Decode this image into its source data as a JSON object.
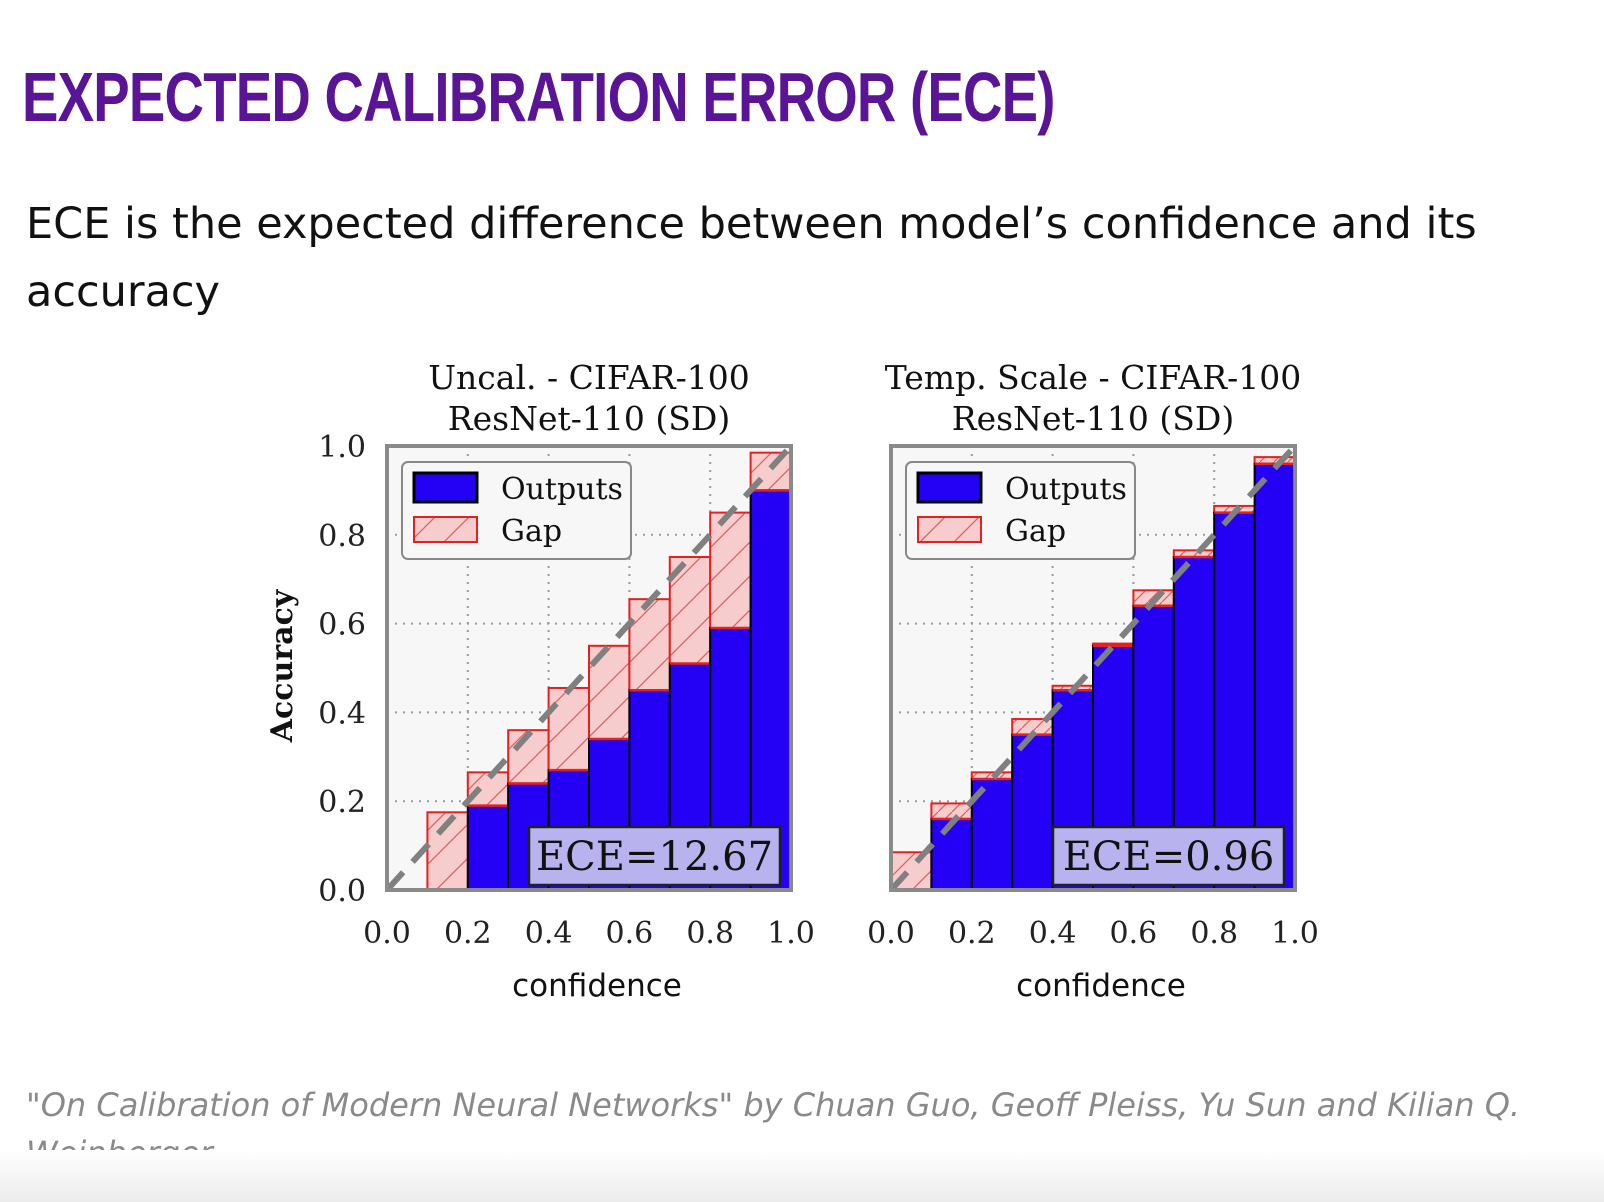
{
  "slide": {
    "title": "EXPECTED CALIBRATION ERROR (ECE)",
    "body": "ECE is the expected difference between model’s confidence and its accuracy",
    "citation": "\"On Calibration of Modern Neural Networks\" by Chuan Guo, Geoff Pleiss, Yu Sun and Kilian Q. Weinberger"
  },
  "colors": {
    "title": "#5a1596",
    "outputs": "#2400f5",
    "gap_fill": "#f6cccc",
    "gap_edge": "#e22222",
    "diagonal": "#808080",
    "ece_box": "#b8b2ee"
  },
  "chart_data": [
    {
      "type": "bar",
      "title_lines": [
        "Uncal. - CIFAR-100",
        "ResNet-110 (SD)"
      ],
      "xlabel": "confidence",
      "ylabel": "Accuracy",
      "xlim": [
        0,
        1
      ],
      "ylim": [
        0,
        1
      ],
      "x_ticks": [
        "0.0",
        "0.2",
        "0.4",
        "0.6",
        "0.8",
        "1.0"
      ],
      "y_ticks": [
        "0.0",
        "0.2",
        "0.4",
        "0.6",
        "0.8",
        "1.0"
      ],
      "grid": true,
      "legend": {
        "position": "top-left",
        "entries": [
          "Outputs",
          "Gap"
        ]
      },
      "annotation": "ECE=12.67",
      "bin_edges": [
        0.0,
        0.1,
        0.2,
        0.3,
        0.4,
        0.5,
        0.6,
        0.7,
        0.8,
        0.9,
        1.0
      ],
      "series": [
        {
          "name": "Outputs",
          "values": [
            0.0,
            0.0,
            0.19,
            0.24,
            0.27,
            0.34,
            0.45,
            0.51,
            0.59,
            0.9
          ]
        },
        {
          "name": "Gap",
          "values": [
            0.0,
            0.175,
            0.265,
            0.36,
            0.455,
            0.55,
            0.655,
            0.75,
            0.85,
            0.985
          ]
        }
      ]
    },
    {
      "type": "bar",
      "title_lines": [
        "Temp. Scale - CIFAR-100",
        "ResNet-110 (SD)"
      ],
      "xlabel": "confidence",
      "ylabel": "",
      "xlim": [
        0,
        1
      ],
      "ylim": [
        0,
        1
      ],
      "x_ticks": [
        "0.0",
        "0.2",
        "0.4",
        "0.6",
        "0.8",
        "1.0"
      ],
      "y_ticks": [],
      "grid": true,
      "legend": {
        "position": "top-left",
        "entries": [
          "Outputs",
          "Gap"
        ]
      },
      "annotation": "ECE=0.96",
      "bin_edges": [
        0.0,
        0.1,
        0.2,
        0.3,
        0.4,
        0.5,
        0.6,
        0.7,
        0.8,
        0.9,
        1.0
      ],
      "series": [
        {
          "name": "Outputs",
          "values": [
            0.0,
            0.16,
            0.25,
            0.35,
            0.45,
            0.55,
            0.64,
            0.75,
            0.85,
            0.96
          ]
        },
        {
          "name": "Gap",
          "values": [
            0.085,
            0.195,
            0.265,
            0.385,
            0.46,
            0.555,
            0.675,
            0.765,
            0.865,
            0.975
          ]
        }
      ]
    }
  ]
}
